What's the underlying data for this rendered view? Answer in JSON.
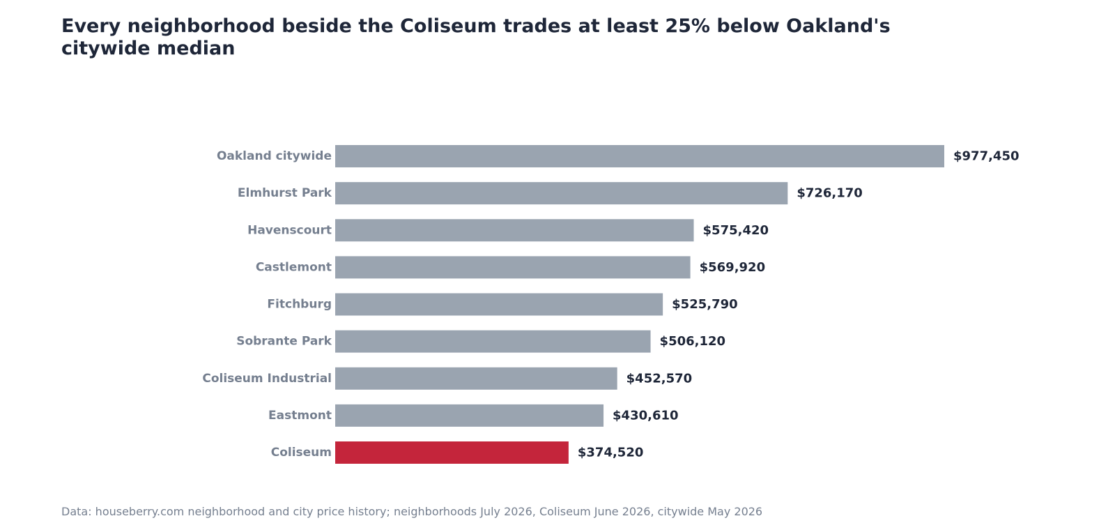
{
  "title": "Every neighborhood beside the Coliseum trades at least 25% below Oakland's citywide median",
  "source": "Data: houseberry.com neighborhood and city price history; neighborhoods July 2026, Coliseum June 2026, citywide May 2026",
  "colors": {
    "default_bar": "#9aa4b0",
    "highlight_bar": "#c4253b"
  },
  "chart_data": {
    "type": "bar",
    "orientation": "horizontal",
    "title": "Every neighborhood beside the Coliseum trades at least 25% below Oakland's citywide median",
    "xlabel": "",
    "ylabel": "",
    "xlim": [
      0,
      977450
    ],
    "grid": false,
    "highlight": "Coliseum",
    "categories": [
      "Oakland citywide",
      "Elmhurst Park",
      "Havenscourt",
      "Castlemont",
      "Fitchburg",
      "Sobrante Park",
      "Coliseum Industrial",
      "Eastmont",
      "Coliseum"
    ],
    "values": [
      977450,
      726170,
      575420,
      569920,
      525790,
      506120,
      452570,
      430610,
      374520
    ],
    "value_labels": [
      "$977,450",
      "$726,170",
      "$575,420",
      "$569,920",
      "$525,790",
      "$506,120",
      "$452,570",
      "$430,610",
      "$374,520"
    ]
  }
}
